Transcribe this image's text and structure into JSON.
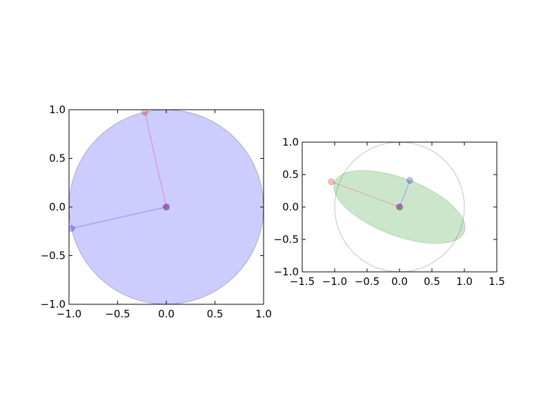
{
  "chart_data": [
    {
      "type": "scatter",
      "title": "",
      "xlabel": "",
      "ylabel": "",
      "xlim": [
        -1.0,
        1.0
      ],
      "ylim": [
        -1.0,
        1.0
      ],
      "xticks": [
        "−1.0",
        "−0.5",
        "0.0",
        "0.5",
        "1.0"
      ],
      "yticks": [
        "−1.0",
        "−0.5",
        "0.0",
        "0.5",
        "1.0"
      ],
      "grid": false,
      "shape": {
        "kind": "ellipse",
        "center": [
          0.0,
          0.0
        ],
        "semi_axes": [
          1.0,
          1.0
        ],
        "angle_deg": 0,
        "fill": "#0000ff",
        "fill_opacity": 0.2,
        "edge": "#000000",
        "edge_opacity": 0.2
      },
      "vectors": [
        {
          "from": [
            0.0,
            0.0
          ],
          "to": [
            -0.22,
            0.975
          ],
          "color": "#ff0000"
        },
        {
          "from": [
            0.0,
            0.0
          ],
          "to": [
            -0.975,
            -0.22
          ],
          "color": "#0000ff"
        }
      ],
      "origin_marker": {
        "point": [
          0.0,
          0.0
        ],
        "color": "#800080"
      }
    },
    {
      "type": "scatter",
      "title": "",
      "xlabel": "",
      "ylabel": "",
      "xlim": [
        -1.5,
        1.5
      ],
      "ylim": [
        -1.0,
        1.0
      ],
      "xticks": [
        "−1.5",
        "−1.0",
        "−0.5",
        "0.0",
        "0.5",
        "1.0",
        "1.5"
      ],
      "yticks": [
        "−1.0",
        "−0.5",
        "0.0",
        "0.5",
        "1.0"
      ],
      "grid": false,
      "reference_circle": {
        "center": [
          0.0,
          0.0
        ],
        "radius": 1.0,
        "edge": "#000000",
        "edge_opacity": 0.2
      },
      "shape": {
        "kind": "ellipse",
        "center": [
          0.0,
          0.0
        ],
        "semi_axes": [
          1.07,
          0.44
        ],
        "angle_deg": -21,
        "fill": "#008000",
        "fill_opacity": 0.2,
        "edge": "#008000",
        "edge_opacity": 0.2
      },
      "vectors": [
        {
          "from": [
            0.0,
            0.0
          ],
          "to": [
            -1.05,
            0.39
          ],
          "color": "#ff0000"
        },
        {
          "from": [
            0.0,
            0.0
          ],
          "to": [
            0.16,
            0.41
          ],
          "color": "#0000ff"
        }
      ],
      "origin_marker": {
        "point": [
          0.0,
          0.0
        ],
        "color": "#800080"
      }
    }
  ]
}
